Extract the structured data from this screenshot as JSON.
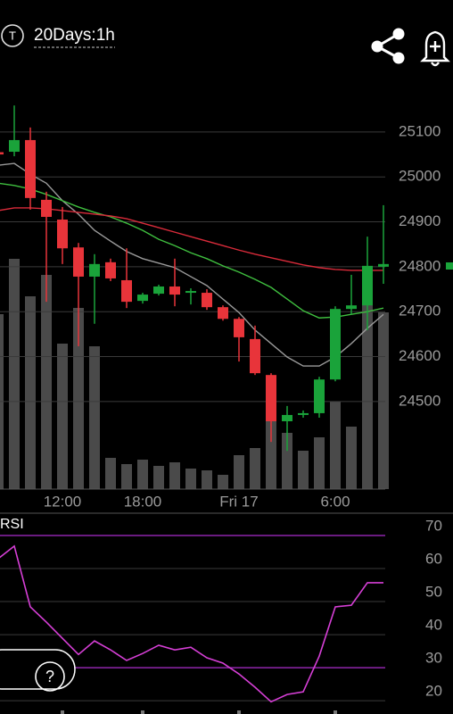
{
  "header": {
    "icon_letter": "T",
    "title": "20Days:1h",
    "help_button": "?"
  },
  "chart_data": [
    {
      "type": "candlestick",
      "categories": [
        null,
        null,
        null,
        null,
        "12:00",
        null,
        null,
        null,
        null,
        "18:00",
        null,
        null,
        null,
        null,
        null,
        "Fri 17",
        null,
        null,
        null,
        null,
        null,
        "6:00",
        null,
        null,
        null
      ],
      "open": [
        25055,
        25056,
        25082,
        24949,
        24905,
        24843,
        24778,
        24810,
        24770,
        24724,
        24740,
        24756,
        24742,
        24742,
        24710,
        24684,
        24639,
        24559,
        24456,
        24470,
        24474,
        24549,
        24706,
        24714,
        24800
      ],
      "high": [
        25060,
        25159,
        25110,
        24967,
        24933,
        24853,
        24828,
        24818,
        24841,
        24742,
        24760,
        24818,
        24752,
        24750,
        24714,
        24688,
        24669,
        24563,
        24490,
        24480,
        24555,
        24712,
        24782,
        24867,
        24937
      ],
      "low": [
        25045,
        25046,
        24927,
        24722,
        24806,
        24623,
        24673,
        24768,
        24708,
        24718,
        24736,
        24712,
        24716,
        24704,
        24680,
        24589,
        24559,
        24410,
        24390,
        24464,
        24464,
        24545,
        24694,
        24659,
        24762
      ],
      "close": [
        25050,
        25082,
        24953,
        24911,
        24841,
        24778,
        24806,
        24774,
        24722,
        24738,
        24756,
        24738,
        24746,
        24710,
        24684,
        24643,
        24563,
        24456,
        24470,
        24474,
        24549,
        24706,
        24714,
        24802,
        24806
      ],
      "up_color": "#1aa33a",
      "down_color": "#e8343a",
      "volume": [
        196,
        258,
        216,
        240,
        163,
        203,
        160,
        35,
        28,
        33,
        26,
        30,
        23,
        21,
        16,
        38,
        46,
        80,
        63,
        43,
        58,
        98,
        70,
        250,
        198
      ],
      "volume_lim": [
        0,
        458
      ],
      "volume_color": "#4a4a4a",
      "lines": [
        {
          "color": "#9a9a9a",
          "values": [
            25026,
            25030,
            25006,
            24986,
            24947,
            24917,
            24881,
            24857,
            24834,
            24818,
            24808,
            24798,
            24778,
            24758,
            24728,
            24698,
            24659,
            24629,
            24599,
            24579,
            24579,
            24599,
            24629,
            24663,
            24694
          ]
        },
        {
          "color": "#3fbf3f",
          "values": [
            24986,
            24981,
            24973,
            24961,
            24947,
            24933,
            24921,
            24911,
            24897,
            24881,
            24861,
            24847,
            24831,
            24818,
            24802,
            24788,
            24772,
            24754,
            24728,
            24702,
            24686,
            24688,
            24694,
            24700,
            24708
          ]
        },
        {
          "color": "#d92b3a",
          "values": [
            24925,
            24931,
            24931,
            24929,
            24925,
            24921,
            24917,
            24913,
            24907,
            24897,
            24887,
            24877,
            24867,
            24857,
            24847,
            24837,
            24828,
            24820,
            24812,
            24804,
            24798,
            24794,
            24792,
            24792,
            24792
          ]
        }
      ],
      "ylim": [
        24305,
        25215
      ],
      "yticks": [
        24500,
        24600,
        24700,
        24800,
        24900,
        25000,
        25100
      ],
      "grid": true
    },
    {
      "type": "line",
      "title": "RSI",
      "values": [
        63,
        66.8,
        48.4,
        43.8,
        38.9,
        34,
        38.1,
        35.4,
        32.2,
        34.3,
        36.8,
        35.4,
        36.2,
        33,
        31.4,
        28.1,
        24.1,
        19.7,
        21.9,
        22.7,
        33.5,
        48.4,
        48.9,
        55.7,
        55.7
      ],
      "color": "#d63fd6",
      "ylim": [
        16,
        76.2
      ],
      "yticks": [
        20,
        30,
        40,
        50,
        60,
        70
      ],
      "levels": [
        70,
        30
      ],
      "level_color": "#8e24aa",
      "grid": true
    }
  ]
}
